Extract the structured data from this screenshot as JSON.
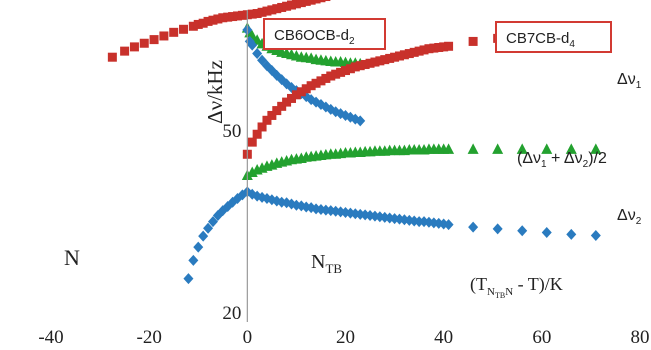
{
  "chart_data": {
    "type": "scatter",
    "xlim": [
      -40,
      80
    ],
    "ylim": [
      20,
      80
    ],
    "xticks": [
      -40,
      -20,
      0,
      20,
      40,
      60,
      80
    ],
    "ytick_labels": [
      {
        "value": 50,
        "label": "50"
      },
      {
        "value": 20,
        "label": "20"
      }
    ],
    "ylabel": "Δν/kHz",
    "grid": false,
    "zero_line": true,
    "boxed_labels": [
      {
        "text_main": "CB6OCB-d",
        "text_sub": "2"
      },
      {
        "text_main": "CB7CB-d",
        "text_sub": "4"
      }
    ],
    "annotations": {
      "phase_n": "N",
      "phase_ntb_main": "N",
      "phase_ntb_sub": "TB",
      "x_axis_main": "(T",
      "x_axis_sub1": "N",
      "x_axis_sub2": "TB",
      "x_axis_sub3": "N",
      "x_axis_rest": " - T)/K"
    },
    "series_labels": {
      "dnu1": {
        "main": "Δν",
        "sub": "1"
      },
      "avg": {
        "text": "(Δν",
        "sub1": "1",
        "mid": " + Δν",
        "sub2": "2",
        "end": ")/2"
      },
      "dnu2": {
        "main": "Δν",
        "sub": "2"
      }
    },
    "colors": {
      "red": "#c8312b",
      "green": "#23a12f",
      "blue": "#2a7bbf",
      "box_border": "#d23a32",
      "axis": "#9a9a9a"
    },
    "series": [
      {
        "compound": "CB6OCB",
        "marker": "square",
        "color": "#c8312b",
        "x": [
          -27.5,
          -25,
          -23,
          -21,
          -19,
          -17,
          -15,
          -13,
          -11,
          -10,
          -9,
          -8,
          -7,
          -6,
          -5,
          -4,
          -3,
          -2,
          -1,
          0,
          1,
          2,
          3,
          4,
          5,
          6,
          7,
          8,
          9,
          10,
          11,
          12,
          13,
          14,
          15,
          16,
          17,
          18,
          19,
          20,
          21,
          22,
          23
        ],
        "y": [
          62.0,
          63.0,
          63.7,
          64.3,
          64.9,
          65.5,
          66.1,
          66.6,
          67.1,
          67.4,
          67.6,
          67.9,
          68.1,
          68.3,
          68.5,
          68.6,
          68.7,
          68.8,
          68.9,
          69.0,
          69.1,
          69.2,
          69.4,
          69.6,
          69.8,
          70.0,
          70.2,
          70.4,
          70.6,
          70.8,
          71.0,
          71.2,
          71.4,
          71.6,
          71.8,
          72.0,
          72.2,
          72.4,
          72.6,
          72.8,
          73.0,
          73.2,
          73.4
        ]
      },
      {
        "compound": "CB6OCB",
        "marker": "triangle",
        "color": "#23a12f",
        "x": [
          0,
          0.5,
          1,
          2,
          3,
          4,
          5,
          6,
          7,
          8,
          9,
          10,
          11,
          12,
          13,
          14,
          15,
          16,
          17,
          18,
          19,
          20,
          21,
          22,
          23
        ],
        "y": [
          66.8,
          66.0,
          65.5,
          64.8,
          64.2,
          63.8,
          63.4,
          63.1,
          62.8,
          62.6,
          62.4,
          62.2,
          62.0,
          61.9,
          61.8,
          61.6,
          61.5,
          61.4,
          61.3,
          61.2,
          61.2,
          61.1,
          61.0,
          61.0,
          60.9
        ]
      },
      {
        "compound": "CB6OCB",
        "marker": "diamond",
        "color": "#2a7bbf",
        "x": [
          0,
          0.5,
          1,
          2,
          3,
          4,
          5,
          6,
          7,
          8,
          9,
          10,
          11,
          12,
          13,
          14,
          15,
          16,
          17,
          18,
          19,
          20,
          21,
          22,
          23
        ],
        "y": [
          66.5,
          64.6,
          64.0,
          62.6,
          61.5,
          60.6,
          59.8,
          59.0,
          58.3,
          57.6,
          57.0,
          56.5,
          56.0,
          55.5,
          55.0,
          54.6,
          54.2,
          53.8,
          53.4,
          53.0,
          52.7,
          52.4,
          52.1,
          51.8,
          51.5
        ]
      },
      {
        "compound": "CB7CB",
        "marker": "square",
        "color": "#c8312b",
        "x": [
          0,
          1,
          2,
          3,
          4,
          5,
          6,
          7,
          8,
          9,
          10,
          11,
          12,
          13,
          14,
          15,
          16,
          17,
          18,
          19,
          20,
          21,
          22,
          23,
          24,
          25,
          26,
          27,
          28,
          29,
          30,
          31,
          32,
          33,
          34,
          35,
          36,
          37,
          38,
          39,
          40,
          41,
          46,
          51,
          56,
          61,
          66,
          71
        ],
        "y": [
          46.0,
          48.0,
          49.3,
          50.5,
          51.6,
          52.4,
          53.2,
          53.9,
          54.6,
          55.2,
          55.8,
          56.3,
          56.8,
          57.3,
          57.7,
          58.1,
          58.5,
          58.9,
          59.2,
          59.5,
          59.8,
          60.1,
          60.4,
          60.6,
          60.8,
          61.0,
          61.2,
          61.4,
          61.6,
          61.8,
          62.0,
          62.2,
          62.4,
          62.6,
          62.8,
          63.0,
          63.2,
          63.4,
          63.5,
          63.6,
          63.7,
          63.8,
          64.6,
          65.1,
          65.6,
          66.0,
          66.4,
          66.7
        ]
      },
      {
        "compound": "CB7CB",
        "marker": "triangle",
        "color": "#23a12f",
        "x": [
          0,
          1,
          2,
          3,
          4,
          5,
          6,
          7,
          8,
          9,
          10,
          11,
          12,
          13,
          14,
          15,
          16,
          17,
          18,
          19,
          20,
          21,
          22,
          23,
          24,
          25,
          26,
          27,
          28,
          29,
          30,
          31,
          32,
          33,
          34,
          35,
          36,
          37,
          38,
          39,
          40,
          41,
          46,
          51,
          56,
          61,
          66,
          71
        ],
        "y": [
          42.5,
          43.0,
          43.4,
          43.7,
          44.0,
          44.2,
          44.5,
          44.7,
          44.9,
          45.1,
          45.2,
          45.3,
          45.5,
          45.6,
          45.7,
          45.8,
          45.9,
          46.0,
          46.0,
          46.1,
          46.2,
          46.2,
          46.3,
          46.3,
          46.4,
          46.4,
          46.5,
          46.5,
          46.5,
          46.6,
          46.6,
          46.6,
          46.6,
          46.7,
          46.7,
          46.7,
          46.7,
          46.8,
          46.8,
          46.8,
          46.8,
          46.8,
          46.8,
          46.8,
          46.8,
          46.8,
          46.8,
          46.8
        ]
      },
      {
        "compound": "CB7CB",
        "marker": "diamond",
        "color": "#2a7bbf",
        "x": [
          -12,
          -11,
          -10,
          -9,
          -8,
          -7,
          -6,
          -5,
          -4,
          -3,
          -2,
          -1,
          0,
          1,
          2,
          3,
          4,
          5,
          6,
          7,
          8,
          9,
          10,
          11,
          12,
          13,
          14,
          15,
          16,
          17,
          18,
          19,
          20,
          21,
          22,
          23,
          24,
          25,
          26,
          27,
          28,
          29,
          30,
          31,
          32,
          33,
          34,
          35,
          36,
          37,
          38,
          39,
          40,
          41,
          46,
          51,
          56,
          61,
          66,
          71
        ],
        "y": [
          25.5,
          28.5,
          30.7,
          32.5,
          33.8,
          34.9,
          35.9,
          36.7,
          37.4,
          38.1,
          38.7,
          39.3,
          39.8,
          39.4,
          39.1,
          38.9,
          38.7,
          38.5,
          38.3,
          38.1,
          38.0,
          37.8,
          37.6,
          37.5,
          37.3,
          37.2,
          37.0,
          36.9,
          36.8,
          36.7,
          36.6,
          36.5,
          36.4,
          36.3,
          36.2,
          36.1,
          36.0,
          35.9,
          35.8,
          35.7,
          35.6,
          35.5,
          35.4,
          35.3,
          35.2,
          35.1,
          35.0,
          34.9,
          34.9,
          34.8,
          34.7,
          34.6,
          34.5,
          34.4,
          34.0,
          33.7,
          33.4,
          33.1,
          32.8,
          32.6
        ]
      }
    ]
  }
}
